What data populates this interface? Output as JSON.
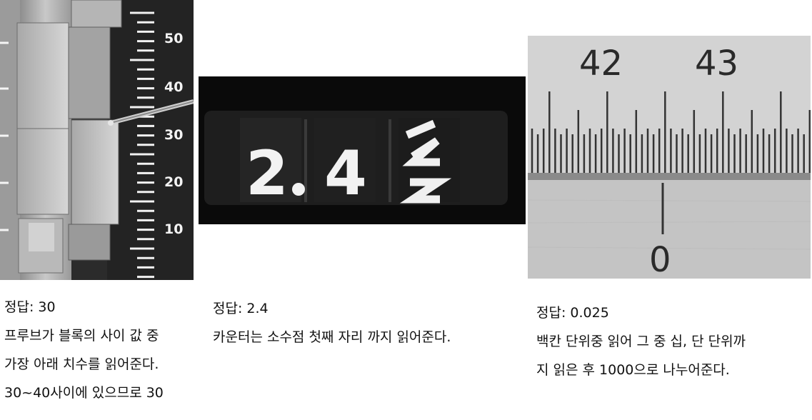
{
  "panel1": {
    "scale_labels": [
      "50",
      "40",
      "30",
      "20",
      "10"
    ],
    "answer": "정답: 30",
    "lines": [
      "프루브가 블록의 사이 값 중",
      "가장 아래 치수를 읽어준다.",
      "30~40사이에 있으므로 30"
    ]
  },
  "panel2": {
    "digits": [
      "2",
      "4"
    ],
    "answer": "정답: 2.4",
    "lines": [
      "카운터는 소수점 첫째 자리 까지 읽어준다."
    ]
  },
  "panel3": {
    "main_labels": [
      "42",
      "43"
    ],
    "vernier_label": "0",
    "answer": "정답: 0.025",
    "lines": [
      "백칸 단위중 읽어 그 중 십, 단 단위까",
      "지 읽은 후 1000으로 나누어준다."
    ]
  }
}
